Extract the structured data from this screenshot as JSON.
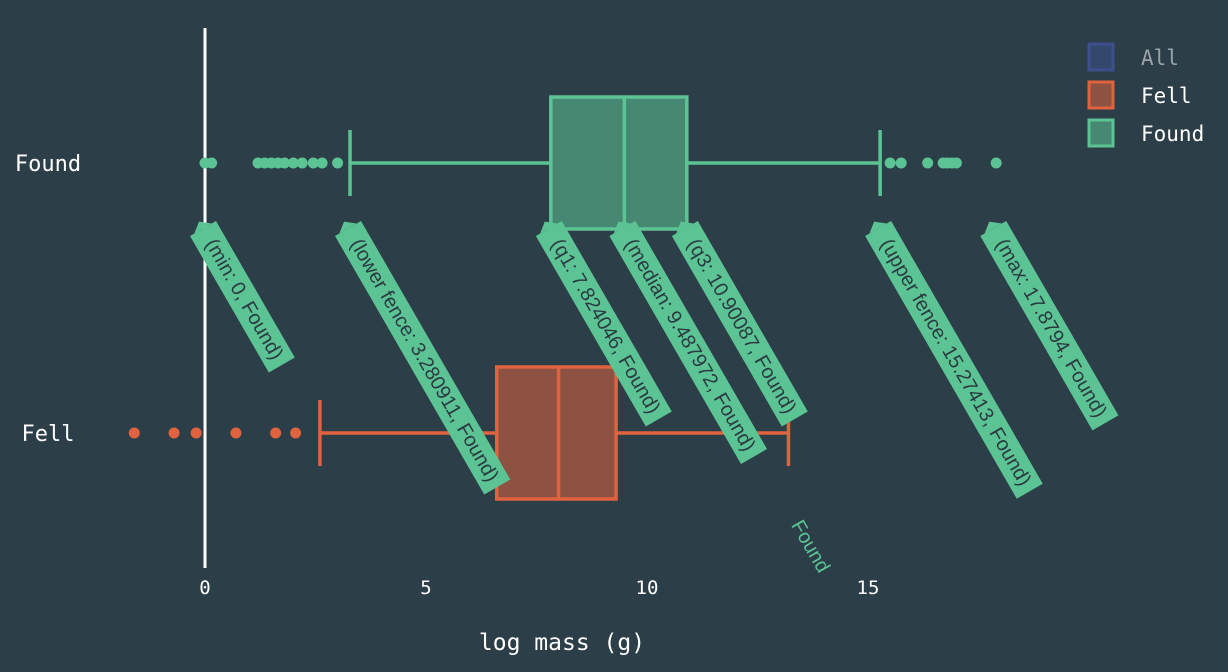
{
  "chart_data": {
    "type": "box",
    "title": "",
    "xlabel": "log mass (g)",
    "ylabel": "",
    "xlim": [
      -2.8,
      20.8
    ],
    "x_ticks": [
      0,
      5,
      10,
      15
    ],
    "grid": false,
    "legend": {
      "placement": "top-right",
      "entries": [
        {
          "name": "All",
          "color": "#3d4f8c",
          "muted": true
        },
        {
          "name": "Fell",
          "color": "#e0623f",
          "muted": false
        },
        {
          "name": "Found",
          "color": "#5cc494",
          "muted": false
        }
      ]
    },
    "series": [
      {
        "name": "Found",
        "color": "#5cc494",
        "min": 0,
        "lower_fence": 3.280911,
        "q1": 7.824046,
        "median": 9.487972,
        "q3": 10.90087,
        "upper_fence": 15.27413,
        "max": 17.8794,
        "outliers": [
          0.0,
          0.15,
          1.2,
          1.35,
          1.5,
          1.65,
          1.8,
          2.0,
          2.2,
          2.45,
          2.65,
          3.0,
          15.5,
          15.75,
          16.35,
          16.7,
          16.8,
          16.9,
          17.0,
          17.9
        ]
      },
      {
        "name": "Fell",
        "color": "#e0623f",
        "min": -1.6,
        "lower_fence": 2.6,
        "q1": 6.6,
        "median": 8.0,
        "q3": 9.3,
        "upper_fence": 13.2,
        "outliers": [
          -1.6,
          -0.7,
          -0.2,
          0.7,
          1.6,
          2.05
        ]
      }
    ],
    "annotations": {
      "series": "Found",
      "labels": [
        {
          "key": "min",
          "value": 0,
          "text": "(min: 0, Found)"
        },
        {
          "key": "lower_fence",
          "value": 3.280911,
          "text": "(lower fence: 3.280911, Found)"
        },
        {
          "key": "q1",
          "value": 7.824046,
          "text": "(q1: 7.824046, Found)"
        },
        {
          "key": "median",
          "value": 9.487972,
          "text": "(median: 9.487972, Found)"
        },
        {
          "key": "q3",
          "value": 10.90087,
          "text": "(q3: 10.90087, Found)"
        },
        {
          "key": "upper_fence",
          "value": 15.27413,
          "text": "(upper fence: 15.27413, Found)"
        },
        {
          "key": "max",
          "value": 17.8794,
          "text": "(max: 17.8794, Found)"
        }
      ],
      "hover_label": "Found"
    }
  }
}
